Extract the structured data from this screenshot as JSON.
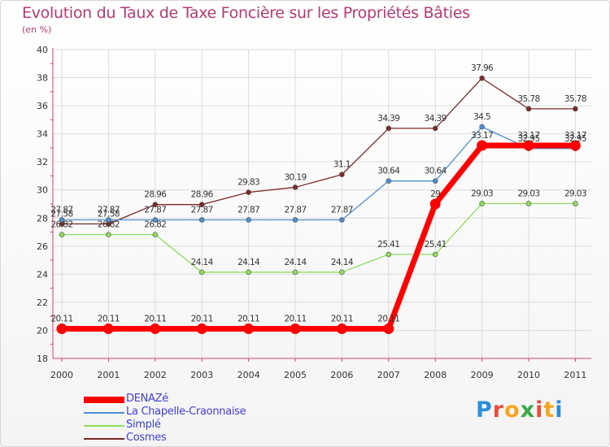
{
  "title": "Evolution du Taux de Taxe Foncière sur les Propriétés Bâties",
  "unit_label": "(en %)",
  "logo_text": "Proxiti",
  "chart_data": {
    "type": "line",
    "title": "Evolution du Taux de Taxe Foncière sur les Propriétés Bâties",
    "ylabel": "(en %)",
    "xlabel": "",
    "ylim": [
      18,
      40
    ],
    "yticks": [
      18,
      20,
      22,
      24,
      26,
      28,
      30,
      32,
      34,
      36,
      38,
      40
    ],
    "categories": [
      "2000",
      "2001",
      "2002",
      "2003",
      "2004",
      "2005",
      "2006",
      "2007",
      "2008",
      "2009",
      "2010",
      "2011"
    ],
    "grid": true,
    "legend_position": "bottom-left",
    "series": [
      {
        "name": "DENAZé",
        "color": "#ff0000",
        "values": [
          20.11,
          20.11,
          20.11,
          20.11,
          20.11,
          20.11,
          20.11,
          20.11,
          29,
          33.17,
          33.17,
          33.17
        ]
      },
      {
        "name": "La Chapelle-Craonnaise",
        "color": "#4d8fd1",
        "values": [
          27.87,
          27.87,
          27.87,
          27.87,
          27.87,
          27.87,
          27.87,
          30.64,
          30.64,
          34.5,
          32.95,
          32.95
        ]
      },
      {
        "name": "Simplé",
        "color": "#8fdb5c",
        "values": [
          26.82,
          26.82,
          26.82,
          24.14,
          24.14,
          24.14,
          24.14,
          25.41,
          25.41,
          29.03,
          29.03,
          29.03
        ]
      },
      {
        "name": "Cosmes",
        "color": "#7a2a2a",
        "values": [
          27.58,
          27.58,
          28.96,
          28.96,
          29.83,
          30.19,
          31.1,
          34.39,
          34.39,
          37.96,
          35.78,
          35.78
        ]
      }
    ],
    "point_labels": [
      [
        "20.11",
        "20.11",
        "20.11",
        "20.11",
        "20.11",
        "20.11",
        "20.11",
        "20.11",
        "29",
        "33.17",
        "33.17",
        "33.17"
      ],
      [
        "27.87",
        "27.87",
        "27.87",
        "27.87",
        "27.87",
        "27.87",
        "27.87",
        "30.64",
        "30.64",
        "34.5",
        "32.95",
        "32.95"
      ],
      [
        "26.82",
        "26.82",
        "26.82",
        "24.14",
        "24.14",
        "24.14",
        "24.14",
        "25.41",
        "25.41",
        "29.03",
        "29.03",
        "29.03"
      ],
      [
        "27.58",
        "27.58",
        "28.96",
        "28.96",
        "29.83",
        "30.19",
        "31.1",
        "34.39",
        "34.39",
        "37.96",
        "35.78",
        "35.78"
      ]
    ]
  }
}
